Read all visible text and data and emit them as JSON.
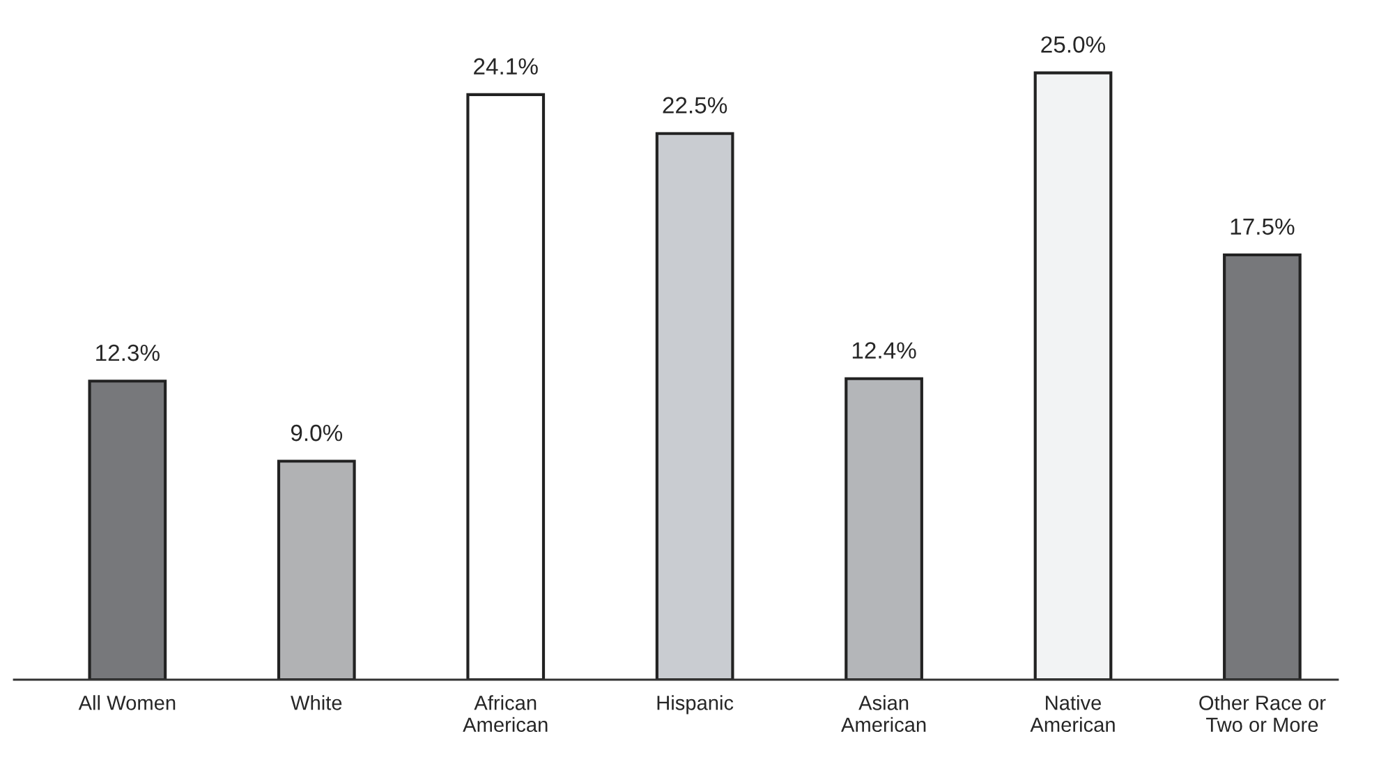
{
  "chart_data": {
    "type": "bar",
    "categories": [
      "All Women",
      "White",
      "African\nAmerican",
      "Hispanic",
      "Asian\nAmerican",
      "Native\nAmerican",
      "Other Race or\nTwo or More"
    ],
    "values": [
      12.3,
      9.0,
      24.1,
      22.5,
      12.4,
      25.0,
      17.5
    ],
    "value_labels": [
      "12.3%",
      "9.0%",
      "24.1%",
      "22.5%",
      "12.4%",
      "25.0%",
      "17.5%"
    ],
    "colors": [
      "#77787b",
      "#b1b2b4",
      "#ffffff",
      "#c9ccd1",
      "#b4b6b9",
      "#f2f3f4",
      "#77787b"
    ],
    "grid": false
  }
}
